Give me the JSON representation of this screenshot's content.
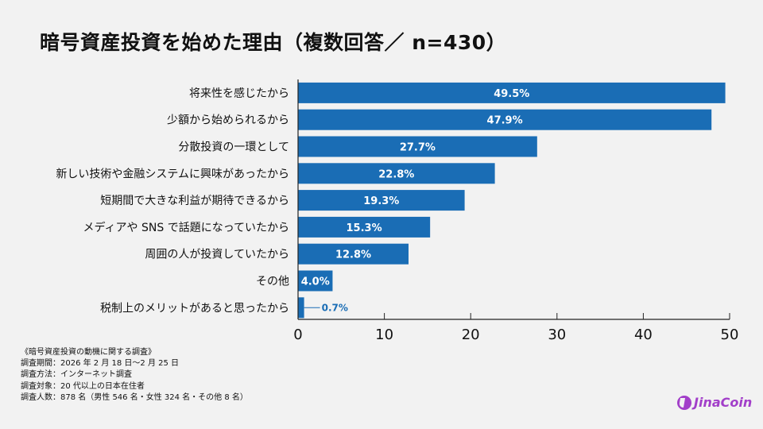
{
  "chart_data": {
    "type": "bar",
    "orientation": "horizontal",
    "title": "暗号資産投資を始めた理由（複数回答／ n=430）",
    "categories": [
      "将来性を感じたから",
      "少額から始められるから",
      "分散投資の一環として",
      "新しい技術や金融システムに興味があったから",
      "短期間で大きな利益が期待できるから",
      "メディアや SNS で話題になっていたから",
      "周囲の人が投資していたから",
      "その他",
      "税制上のメリットがあると思ったから"
    ],
    "values": [
      49.5,
      47.9,
      27.7,
      22.8,
      19.3,
      15.3,
      12.8,
      4.0,
      0.7
    ],
    "data_labels": [
      "49.5%",
      "47.9%",
      "27.7%",
      "22.8%",
      "19.3%",
      "15.3%",
      "12.8%",
      "4.0%",
      "0.7%"
    ],
    "xlim": [
      0,
      50
    ],
    "xticks": [
      "0",
      "10",
      "20",
      "30",
      "40",
      "50"
    ],
    "grid": false,
    "bar_color": "#1a6db5"
  },
  "notes": [
    "《暗号資産投資の動機に関する調査》",
    "調査期間：2026 年 2 月 18 日〜2 月 25 日",
    "調査方法：インターネット調査",
    "調査対象：20 代以上の日本在住者",
    "調査人数：878 名（男性 546 名・女性 324 名・その他 8 名）"
  ],
  "logo": {
    "text": "JinaCoin",
    "color": "#a23fc9"
  }
}
